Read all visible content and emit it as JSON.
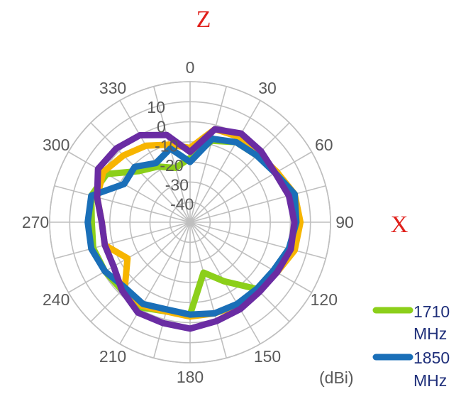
{
  "chart_data": {
    "type": "polar-line",
    "axis_letters": [
      "Z",
      "X"
    ],
    "unit": "(dBi)",
    "angle_labels": [
      "0",
      "30",
      "60",
      "90",
      "120",
      "150",
      "180",
      "210",
      "240",
      "270",
      "300",
      "330"
    ],
    "radial_ticks": [
      10,
      0,
      -10,
      -20,
      -30,
      -40
    ],
    "radial_tick_labels": [
      "10",
      "0",
      "-10",
      "-20",
      "-30",
      "-40"
    ],
    "rlim": [
      -50,
      20
    ],
    "grid": true,
    "legend_position": "bottom-right",
    "legend": [
      {
        "label_line1": "1710",
        "label_line2": "MHz",
        "color": "#8ccf1a"
      },
      {
        "label_line1": "1850",
        "label_line2": "MHz",
        "color": "#1a6fb8"
      }
    ],
    "angles": [
      0,
      15,
      30,
      45,
      60,
      75,
      90,
      105,
      120,
      135,
      150,
      165,
      180,
      195,
      210,
      225,
      240,
      255,
      270,
      285,
      300,
      315,
      330,
      345
    ],
    "series": [
      {
        "color": "#8ccf1a",
        "values": [
          -18,
          -8,
          -4,
          -3,
          0,
          3,
          4,
          2,
          -1,
          -3,
          -16,
          -24,
          -4,
          -4,
          -1,
          -2,
          -1,
          0,
          -1,
          1,
          -2,
          -14,
          -18,
          -22
        ]
      },
      {
        "color": "#f7b500",
        "values": [
          -13,
          -2,
          -1,
          -2,
          0,
          4,
          5,
          4,
          0,
          -2,
          -2,
          -3,
          -3,
          -4,
          -2,
          -4,
          -14,
          -6,
          -6,
          -2,
          0,
          -3,
          -6,
          -10
        ]
      },
      {
        "color": "#1a6fb8",
        "values": [
          -20,
          -7,
          -4,
          -3,
          -1,
          4,
          3,
          1,
          -2,
          -3,
          -3,
          -3,
          -4,
          -5,
          -3,
          -4,
          -1,
          1,
          1,
          1,
          -12,
          -11,
          -16,
          -12
        ]
      },
      {
        "color": "#6a2ca3",
        "values": [
          -15,
          -2,
          1,
          0,
          -1,
          1,
          2,
          2,
          0,
          -1,
          0,
          1,
          3,
          2,
          2,
          -2,
          -6,
          -6,
          -6,
          -2,
          3,
          2,
          0,
          -5
        ]
      }
    ]
  }
}
